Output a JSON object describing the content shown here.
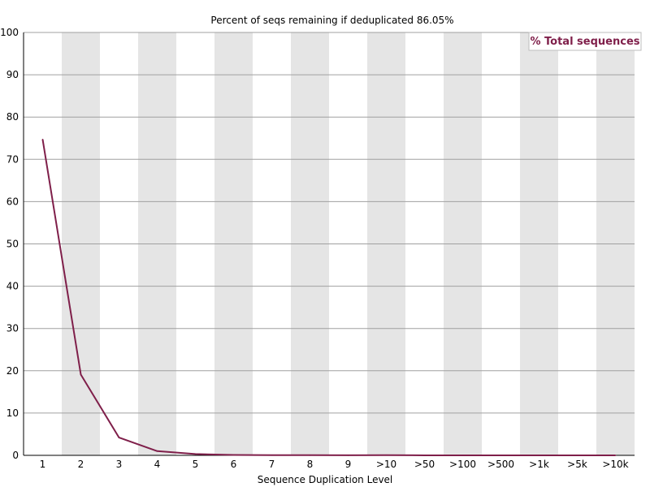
{
  "chart_data": {
    "type": "line",
    "title": "Percent of seqs remaining if deduplicated 86.05%",
    "xlabel": "Sequence Duplication Level",
    "ylabel": "",
    "categories": [
      "1",
      "2",
      "3",
      "4",
      "5",
      "6",
      "7",
      "8",
      "9",
      ">10",
      ">50",
      ">100",
      ">500",
      ">1k",
      ">5k",
      ">10k"
    ],
    "ylim": [
      0,
      100
    ],
    "yticks": [
      0,
      10,
      20,
      30,
      40,
      50,
      60,
      70,
      80,
      90,
      100
    ],
    "series": [
      {
        "name": "% Total sequences",
        "color": "#7f1f4a",
        "values": [
          74.7,
          19.1,
          4.2,
          1.0,
          0.3,
          0.1,
          0.05,
          0.03,
          0.02,
          0.05,
          0,
          0,
          0,
          0,
          0,
          0
        ]
      }
    ],
    "grid": true,
    "alternating_column_shading": true,
    "legend_position": "top-right"
  },
  "colors": {
    "band": "#e5e5e5",
    "gridline": "#a0a0a0",
    "axis": "#000000",
    "series": "#7f1f4a"
  }
}
